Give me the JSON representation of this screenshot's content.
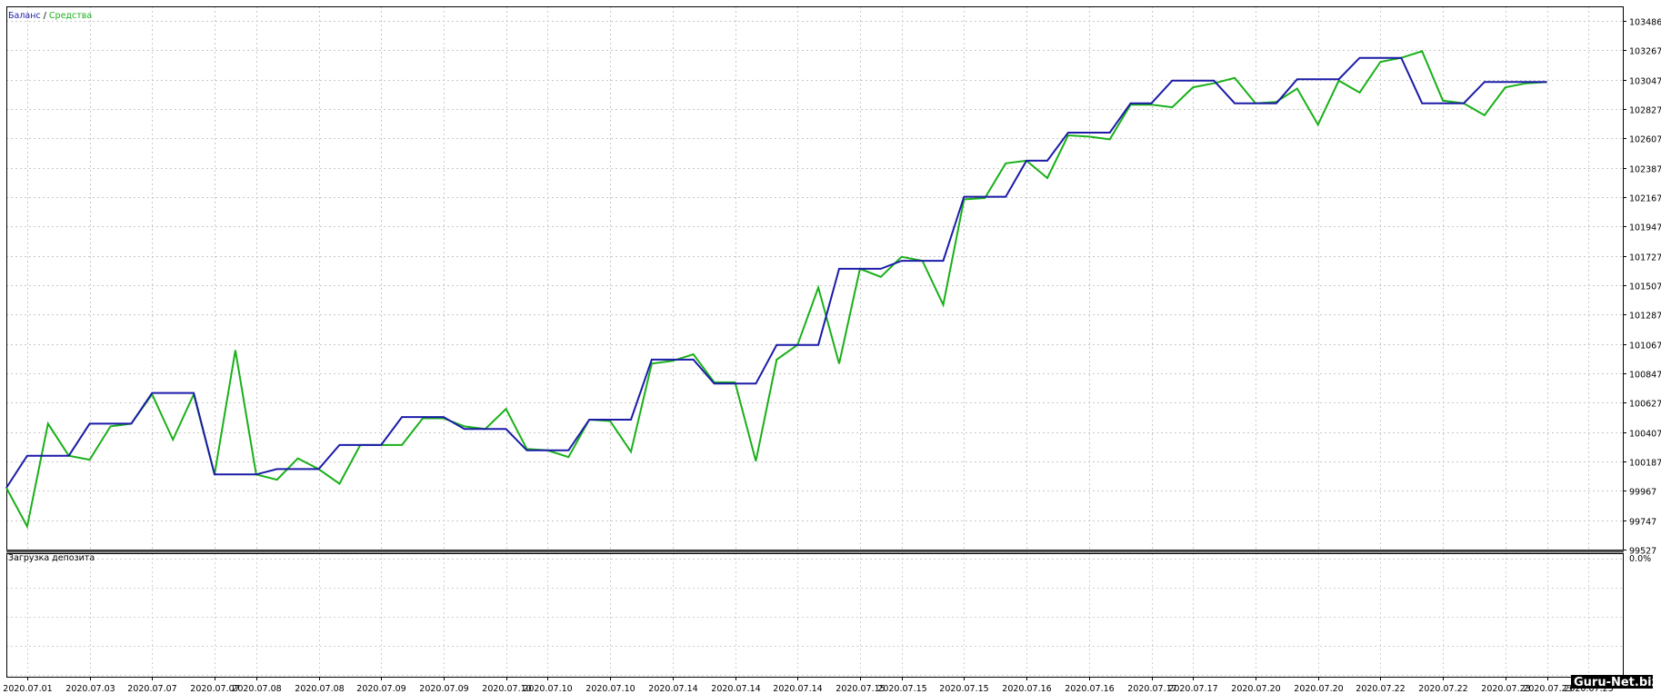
{
  "chart_data": [
    {
      "type": "line",
      "legend": {
        "placement": "top-left",
        "separator": " / ",
        "entries": [
          {
            "label": "Баланс",
            "color": "#1b1ba8"
          },
          {
            "label": "Средства",
            "color": "#19b019"
          }
        ]
      },
      "grid": true,
      "ylim": [
        99527,
        103596
      ],
      "y_ticks": [
        {
          "value": 99527,
          "label": "99527"
        },
        {
          "value": 99747,
          "label": "99747"
        },
        {
          "value": 99967,
          "label": "99967"
        },
        {
          "value": 100187,
          "label": "100187"
        },
        {
          "value": 100407,
          "label": "100407"
        },
        {
          "value": 100627,
          "label": "100627"
        },
        {
          "value": 100847,
          "label": "100847"
        },
        {
          "value": 101067,
          "label": "101067"
        },
        {
          "value": 101287,
          "label": "101287"
        },
        {
          "value": 101507,
          "label": "101507"
        },
        {
          "value": 101727,
          "label": "101727"
        },
        {
          "value": 101947,
          "label": "101947"
        },
        {
          "value": 102167,
          "label": "102167"
        },
        {
          "value": 102387,
          "label": "102387"
        },
        {
          "value": 102607,
          "label": "102607"
        },
        {
          "value": 102827,
          "label": "102827"
        },
        {
          "value": 103047,
          "label": "103047"
        },
        {
          "value": 103267,
          "label": "103267"
        },
        {
          "value": 103486,
          "label": "103486"
        }
      ],
      "x_count": 76,
      "x_tick_labels": [
        {
          "index": 1,
          "label": "2020.07.01"
        },
        {
          "index": 4,
          "label": "2020.07.03"
        },
        {
          "index": 7,
          "label": "2020.07.07"
        },
        {
          "index": 10,
          "label": "2020.07.07"
        },
        {
          "index": 12,
          "label": "2020.07.08"
        },
        {
          "index": 15,
          "label": "2020.07.08"
        },
        {
          "index": 18,
          "label": "2020.07.09"
        },
        {
          "index": 21,
          "label": "2020.07.09"
        },
        {
          "index": 24,
          "label": "2020.07.10"
        },
        {
          "index": 26,
          "label": "2020.07.10"
        },
        {
          "index": 29,
          "label": "2020.07.10"
        },
        {
          "index": 32,
          "label": "2020.07.14"
        },
        {
          "index": 35,
          "label": "2020.07.14"
        },
        {
          "index": 38,
          "label": "2020.07.14"
        },
        {
          "index": 41,
          "label": "2020.07.15"
        },
        {
          "index": 43,
          "label": "2020.07.15"
        },
        {
          "index": 46,
          "label": "2020.07.15"
        },
        {
          "index": 49,
          "label": "2020.07.16"
        },
        {
          "index": 52,
          "label": "2020.07.16"
        },
        {
          "index": 55,
          "label": "2020.07.17"
        },
        {
          "index": 57,
          "label": "2020.07.17"
        },
        {
          "index": 60,
          "label": "2020.07.20"
        },
        {
          "index": 63,
          "label": "2020.07.20"
        },
        {
          "index": 66,
          "label": "2020.07.22"
        },
        {
          "index": 69,
          "label": "2020.07.22"
        },
        {
          "index": 72,
          "label": "2020.07.23"
        },
        {
          "index": 74,
          "label": "2020.07.23"
        },
        {
          "index": 76,
          "label": "2020.07.23"
        }
      ],
      "series": [
        {
          "name": "Баланс",
          "color": "#1b1ba8",
          "points": [
            [
              0,
              99990
            ],
            [
              1,
              100230
            ],
            [
              3,
              100230
            ],
            [
              4,
              100470
            ],
            [
              6,
              100470
            ],
            [
              7,
              100700
            ],
            [
              9,
              100700
            ],
            [
              10,
              100090
            ],
            [
              12,
              100090
            ],
            [
              13,
              100130
            ],
            [
              15,
              100130
            ],
            [
              16,
              100310
            ],
            [
              18,
              100310
            ],
            [
              19,
              100520
            ],
            [
              21,
              100520
            ],
            [
              22,
              100430
            ],
            [
              24,
              100430
            ],
            [
              25,
              100270
            ],
            [
              27,
              100270
            ],
            [
              28,
              100500
            ],
            [
              30,
              100500
            ],
            [
              31,
              100950
            ],
            [
              33,
              100950
            ],
            [
              34,
              100770
            ],
            [
              36,
              100770
            ],
            [
              37,
              101060
            ],
            [
              39,
              101060
            ],
            [
              40,
              101630
            ],
            [
              42,
              101630
            ],
            [
              43,
              101690
            ],
            [
              45,
              101690
            ],
            [
              46,
              102170
            ],
            [
              48,
              102170
            ],
            [
              49,
              102440
            ],
            [
              50,
              102440
            ],
            [
              51,
              102650
            ],
            [
              53,
              102650
            ],
            [
              54,
              102870
            ],
            [
              55,
              102870
            ],
            [
              56,
              103040
            ],
            [
              58,
              103040
            ],
            [
              59,
              102870
            ],
            [
              61,
              102870
            ],
            [
              62,
              103050
            ],
            [
              64,
              103050
            ],
            [
              65,
              103210
            ],
            [
              67,
              103210
            ],
            [
              68,
              102870
            ],
            [
              70,
              102870
            ],
            [
              71,
              103030
            ],
            [
              74,
              103030
            ]
          ]
        },
        {
          "name": "Средства",
          "color": "#19b019",
          "points": [
            [
              0,
              99990
            ],
            [
              1,
              99700
            ],
            [
              2,
              100470
            ],
            [
              3,
              100230
            ],
            [
              4,
              100200
            ],
            [
              5,
              100450
            ],
            [
              6,
              100470
            ],
            [
              7,
              100690
            ],
            [
              8,
              100350
            ],
            [
              9,
              100690
            ],
            [
              10,
              100090
            ],
            [
              11,
              101020
            ],
            [
              12,
              100090
            ],
            [
              13,
              100050
            ],
            [
              14,
              100210
            ],
            [
              15,
              100130
            ],
            [
              16,
              100020
            ],
            [
              17,
              100310
            ],
            [
              18,
              100310
            ],
            [
              19,
              100310
            ],
            [
              20,
              100510
            ],
            [
              21,
              100510
            ],
            [
              22,
              100450
            ],
            [
              23,
              100430
            ],
            [
              24,
              100580
            ],
            [
              25,
              100280
            ],
            [
              26,
              100270
            ],
            [
              27,
              100220
            ],
            [
              28,
              100500
            ],
            [
              29,
              100490
            ],
            [
              30,
              100260
            ],
            [
              31,
              100920
            ],
            [
              32,
              100940
            ],
            [
              33,
              100990
            ],
            [
              34,
              100780
            ],
            [
              35,
              100780
            ],
            [
              36,
              100190
            ],
            [
              37,
              100950
            ],
            [
              38,
              101060
            ],
            [
              39,
              101490
            ],
            [
              40,
              100920
            ],
            [
              41,
              101630
            ],
            [
              42,
              101570
            ],
            [
              43,
              101720
            ],
            [
              44,
              101690
            ],
            [
              45,
              101360
            ],
            [
              46,
              102150
            ],
            [
              47,
              102160
            ],
            [
              48,
              102420
            ],
            [
              49,
              102440
            ],
            [
              50,
              102310
            ],
            [
              51,
              102630
            ],
            [
              52,
              102620
            ],
            [
              53,
              102600
            ],
            [
              54,
              102860
            ],
            [
              55,
              102860
            ],
            [
              56,
              102840
            ],
            [
              57,
              102990
            ],
            [
              58,
              103020
            ],
            [
              59,
              103060
            ],
            [
              60,
              102870
            ],
            [
              61,
              102880
            ],
            [
              62,
              102980
            ],
            [
              63,
              102710
            ],
            [
              64,
              103040
            ],
            [
              65,
              102950
            ],
            [
              66,
              103180
            ],
            [
              67,
              103210
            ],
            [
              68,
              103260
            ],
            [
              69,
              102890
            ],
            [
              70,
              102870
            ],
            [
              71,
              102780
            ],
            [
              72,
              102990
            ],
            [
              73,
              103020
            ],
            [
              74,
              103030
            ]
          ]
        }
      ]
    },
    {
      "type": "line",
      "title": "Загрузка депозита",
      "grid": true,
      "y_ticks": [
        {
          "value": 0,
          "label": "0.0%"
        }
      ],
      "series": []
    }
  ],
  "watermark": "Guru-Net.biz"
}
